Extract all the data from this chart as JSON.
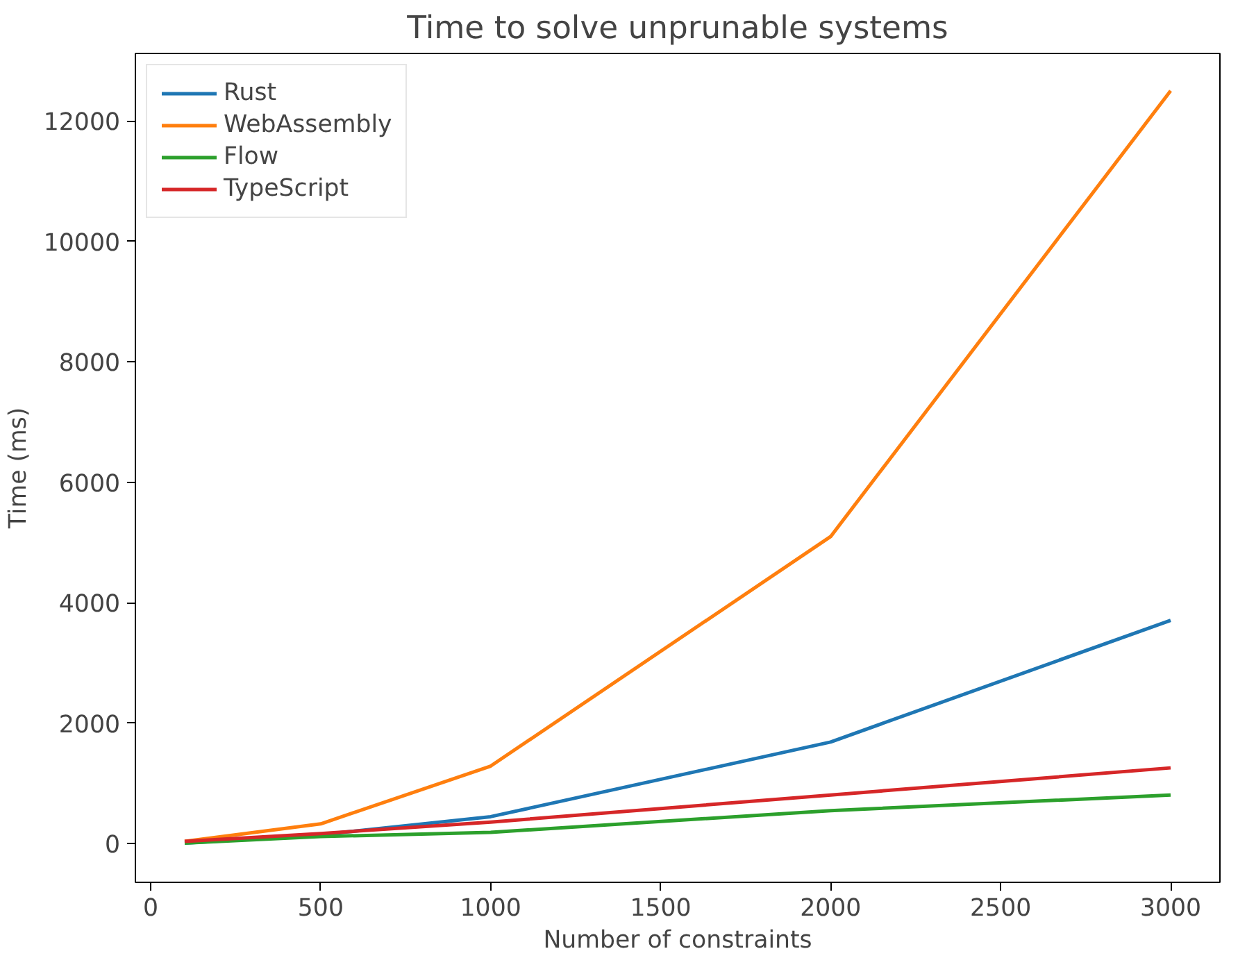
{
  "chart_data": {
    "type": "line",
    "title": "Time to solve unprunable systems",
    "xlabel": "Number of constraints",
    "ylabel": "Time (ms)",
    "x": [
      100,
      500,
      1000,
      2000,
      3000
    ],
    "series": [
      {
        "name": "Rust",
        "color": "#1f77b4",
        "values": [
          10,
          150,
          450,
          1690,
          3710
        ]
      },
      {
        "name": "WebAssembly",
        "color": "#ff7f0e",
        "values": [
          40,
          330,
          1290,
          5100,
          12500
        ]
      },
      {
        "name": "Flow",
        "color": "#2ca02c",
        "values": [
          10,
          120,
          190,
          550,
          810
        ]
      },
      {
        "name": "TypeScript",
        "color": "#d62728",
        "values": [
          40,
          170,
          360,
          810,
          1260
        ]
      }
    ],
    "xlim": [
      -45,
      3145
    ],
    "ylim": [
      -640,
      13120
    ],
    "xticks": [
      0,
      500,
      1000,
      1500,
      2000,
      2500,
      3000
    ],
    "yticks": [
      0,
      2000,
      4000,
      6000,
      8000,
      10000,
      12000
    ],
    "grid": false,
    "legend": "top left",
    "marker": "none",
    "line_style": "solid"
  }
}
